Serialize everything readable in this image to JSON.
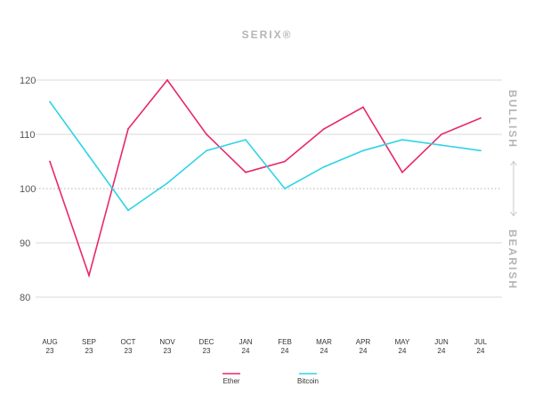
{
  "chart_data": {
    "type": "line",
    "title": "SERIX®",
    "categories": [
      [
        "AUG",
        "23"
      ],
      [
        "SEP",
        "23"
      ],
      [
        "OCT",
        "23"
      ],
      [
        "NOV",
        "23"
      ],
      [
        "DEC",
        "23"
      ],
      [
        "JAN",
        "24"
      ],
      [
        "FEB",
        "24"
      ],
      [
        "MAR",
        "24"
      ],
      [
        "APR",
        "24"
      ],
      [
        "MAY",
        "24"
      ],
      [
        "JUN",
        "24"
      ],
      [
        "JUL",
        "24"
      ]
    ],
    "series": [
      {
        "name": "Ether",
        "color": "#e8286b",
        "values": [
          105,
          84,
          111,
          120,
          110,
          103,
          105,
          111,
          115,
          103,
          110,
          113
        ]
      },
      {
        "name": "Bitcoin",
        "color": "#2fd3e6",
        "values": [
          116,
          106,
          96,
          101,
          107,
          109,
          100,
          104,
          107,
          109,
          108,
          107
        ]
      }
    ],
    "yticks": [
      80,
      90,
      100,
      110,
      120
    ],
    "ylim": [
      80,
      120
    ],
    "reference_line": 100,
    "upper_label": "BULLISH",
    "lower_label": "BEARISH",
    "grid": true,
    "legend_position": "bottom"
  }
}
